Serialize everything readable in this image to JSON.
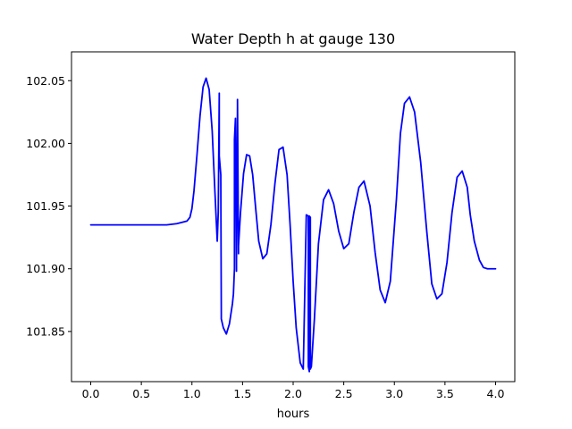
{
  "chart_data": {
    "type": "line",
    "title": "Water Depth h at gauge 130",
    "xlabel": "hours",
    "ylabel": "",
    "xlim": [
      -0.19,
      4.19
    ],
    "ylim": [
      101.81,
      102.073
    ],
    "xticks": [
      0.0,
      0.5,
      1.0,
      1.5,
      2.0,
      2.5,
      3.0,
      3.5,
      4.0
    ],
    "xtick_labels": [
      "0.0",
      "0.5",
      "1.0",
      "1.5",
      "2.0",
      "2.5",
      "3.0",
      "3.5",
      "4.0"
    ],
    "yticks": [
      101.85,
      101.9,
      101.95,
      102.0,
      102.05
    ],
    "ytick_labels": [
      "101.85",
      "101.90",
      "101.95",
      "102.00",
      "102.05"
    ],
    "grid": false,
    "series": [
      {
        "color": "#0000ff",
        "x": [
          0.0,
          0.25,
          0.5,
          0.75,
          0.85,
          0.95,
          0.98,
          1.0,
          1.02,
          1.05,
          1.08,
          1.11,
          1.14,
          1.17,
          1.2,
          1.225,
          1.25,
          1.26,
          1.27,
          1.27,
          1.285,
          1.29,
          1.29,
          1.31,
          1.34,
          1.37,
          1.4,
          1.41,
          1.42,
          1.42,
          1.43,
          1.44,
          1.44,
          1.45,
          1.45,
          1.46,
          1.46,
          1.48,
          1.51,
          1.54,
          1.57,
          1.6,
          1.63,
          1.66,
          1.7,
          1.74,
          1.78,
          1.82,
          1.86,
          1.9,
          1.94,
          1.97,
          2.0,
          2.03,
          2.07,
          2.1,
          2.13,
          2.15,
          2.15,
          2.16,
          2.16,
          2.17,
          2.17,
          2.18,
          2.21,
          2.25,
          2.3,
          2.35,
          2.4,
          2.45,
          2.5,
          2.55,
          2.6,
          2.65,
          2.7,
          2.76,
          2.81,
          2.86,
          2.91,
          2.96,
          3.02,
          3.06,
          3.1,
          3.15,
          3.2,
          3.26,
          3.32,
          3.37,
          3.42,
          3.47,
          3.52,
          3.57,
          3.62,
          3.67,
          3.72,
          3.75,
          3.79,
          3.84,
          3.88,
          3.92,
          3.96,
          4.0
        ],
        "y": [
          101.935,
          101.935,
          101.935,
          101.935,
          101.936,
          101.938,
          101.941,
          101.948,
          101.962,
          101.991,
          102.022,
          102.045,
          102.052,
          102.043,
          102.01,
          101.965,
          101.922,
          101.945,
          102.04,
          101.99,
          101.975,
          101.865,
          101.86,
          101.853,
          101.848,
          101.856,
          101.872,
          101.88,
          101.9,
          102.003,
          102.02,
          101.898,
          101.905,
          102.03,
          102.035,
          101.912,
          101.918,
          101.945,
          101.976,
          101.991,
          101.99,
          101.975,
          101.948,
          101.922,
          101.908,
          101.912,
          101.935,
          101.968,
          101.995,
          101.997,
          101.975,
          101.935,
          101.89,
          101.853,
          101.825,
          101.82,
          101.943,
          101.942,
          101.822,
          101.818,
          101.942,
          101.941,
          101.82,
          101.822,
          101.86,
          101.92,
          101.955,
          101.963,
          101.952,
          101.93,
          101.916,
          101.92,
          101.945,
          101.965,
          101.97,
          101.95,
          101.913,
          101.883,
          101.873,
          101.89,
          101.955,
          102.008,
          102.032,
          102.037,
          102.025,
          101.985,
          101.93,
          101.888,
          101.876,
          101.88,
          101.905,
          101.945,
          101.973,
          101.978,
          101.965,
          101.943,
          101.922,
          101.907,
          101.901,
          101.9,
          101.9,
          101.9
        ]
      }
    ]
  }
}
